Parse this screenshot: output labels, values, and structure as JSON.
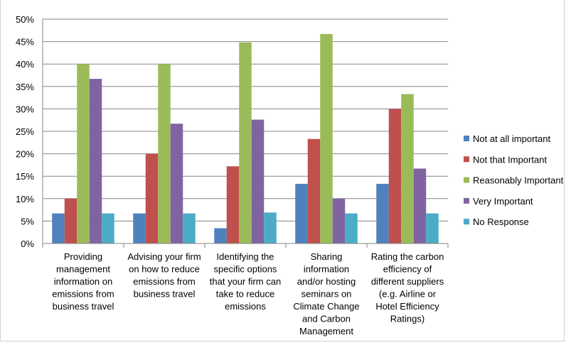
{
  "chart_data": {
    "type": "bar",
    "title": "",
    "xlabel": "",
    "ylabel": "",
    "ylim": [
      0,
      50
    ],
    "y_ticks": [
      "0%",
      "5%",
      "10%",
      "15%",
      "20%",
      "25%",
      "30%",
      "35%",
      "40%",
      "45%",
      "50%"
    ],
    "grid": true,
    "legend_position": "right",
    "categories": [
      [
        "Providing",
        "management",
        "information on",
        "emissions from",
        "business travel"
      ],
      [
        "Advising your firm",
        "on how to reduce",
        "emissions from",
        "business travel"
      ],
      [
        "Identifying the",
        "specific options",
        "that your firm can",
        "take to reduce",
        "emissions"
      ],
      [
        "Sharing",
        "information",
        "and/or hosting",
        "seminars on",
        "Climate Change",
        "and Carbon",
        "Management"
      ],
      [
        "Rating the carbon",
        "efficiency of",
        "different suppliers",
        "(e.g. Airline or",
        "Hotel Efficiency",
        "Ratings)"
      ]
    ],
    "series": [
      {
        "name": "Not at all important",
        "color": "#4F81BD",
        "values": [
          6.7,
          6.7,
          3.4,
          13.3,
          13.3
        ]
      },
      {
        "name": "Not that Important",
        "color": "#C0504D",
        "values": [
          10.0,
          20.0,
          17.2,
          23.3,
          30.0
        ]
      },
      {
        "name": "Reasonably Important",
        "color": "#9BBB59",
        "values": [
          40.0,
          40.0,
          44.8,
          46.7,
          33.3
        ]
      },
      {
        "name": "Very Important",
        "color": "#8064A2",
        "values": [
          36.7,
          26.7,
          27.6,
          10.0,
          16.7
        ]
      },
      {
        "name": "No Response",
        "color": "#4BACC6",
        "values": [
          6.7,
          6.7,
          6.9,
          6.7,
          6.7
        ]
      }
    ]
  }
}
